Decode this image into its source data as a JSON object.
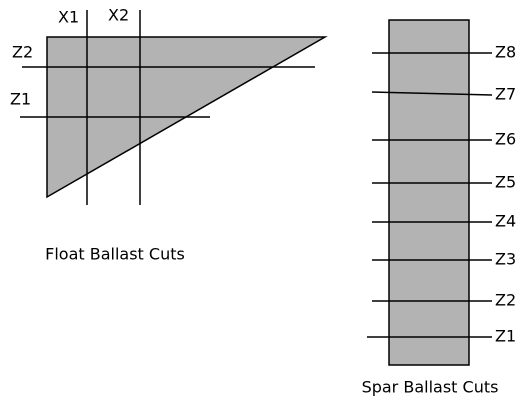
{
  "float": {
    "title": "Float Ballast Cuts",
    "x_cuts": [
      "X1",
      "X2"
    ],
    "z_cuts": [
      "Z2",
      "Z1"
    ]
  },
  "spar": {
    "title": "Spar Ballast Cuts",
    "cuts": [
      "Z8",
      "Z7",
      "Z6",
      "Z5",
      "Z4",
      "Z3",
      "Z2",
      "Z1"
    ]
  }
}
